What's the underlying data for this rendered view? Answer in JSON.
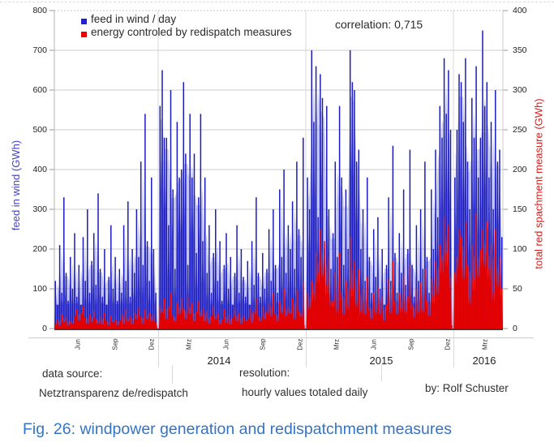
{
  "legend": {
    "items": [
      {
        "label": "feed in wind / day",
        "color": "#2222cc"
      },
      {
        "label": "energy controled by redispatch measures",
        "color": "#e60000"
      }
    ]
  },
  "annotation": {
    "correlation_label": "correlation: 0,715"
  },
  "axes": {
    "left": {
      "label": "feed in wind (GWh)",
      "color": "#4343c8",
      "ticks": [
        "800",
        "700",
        "600",
        "500",
        "400",
        "300",
        "200",
        "100",
        "0"
      ]
    },
    "right": {
      "label": "total red spachment measure (GWh)",
      "color": "#d62020",
      "ticks": [
        "400",
        "350",
        "300",
        "250",
        "200",
        "150",
        "100",
        "50",
        "0"
      ]
    },
    "x": {
      "month_labels": [
        "Jun",
        "Sep",
        "Dez",
        "Mrz",
        "Jun",
        "Sep",
        "Dez",
        "Mrz",
        "Jun",
        "Sep",
        "Dez",
        "Mrz"
      ],
      "year_labels": [
        "2014",
        "2015",
        "2016"
      ]
    }
  },
  "footer": {
    "col1_title": "data source:",
    "col1_value": "Netztransparenz de/redispatch",
    "col2_title": "resolution:",
    "col2_value": "hourly values totaled daily",
    "byline": "by: Rolf Schuster"
  },
  "caption": "Fig. 26: windpower generation and redispatchment measures",
  "chart_data": {
    "type": "line",
    "title": "",
    "x_start": "2013-04",
    "x_end": "2016-04",
    "sampling": "values sampled about every 5 days from the daily series",
    "y_left": {
      "label": "feed in wind (GWh)",
      "range": [
        0,
        800
      ]
    },
    "y_right": {
      "label": "total red spachment measure (GWh)",
      "range": [
        0,
        400
      ]
    },
    "grid": {
      "horizontal_step_left": 100,
      "year_dividers": [
        "2014-01-01",
        "2015-01-01",
        "2016-01-01"
      ]
    },
    "legend_position": "top-left",
    "series": [
      {
        "name": "feed in wind / day",
        "axis": "left",
        "color": "#2222cc",
        "values": [
          120,
          60,
          210,
          90,
          330,
          140,
          70,
          180,
          100,
          240,
          80,
          160,
          60,
          230,
          120,
          300,
          90,
          170,
          240,
          110,
          340,
          150,
          80,
          200,
          60,
          130,
          260,
          100,
          180,
          70,
          150,
          90,
          260,
          120,
          320,
          80,
          200,
          140,
          300,
          180,
          420,
          160,
          540,
          220,
          120,
          380,
          200,
          90,
          300,
          560,
          650,
          480,
          480,
          260,
          600,
          350,
          150,
          520,
          380,
          400,
          620,
          440,
          160,
          540,
          380,
          440,
          190,
          330,
          540,
          220,
          380,
          140,
          260,
          90,
          190,
          300,
          120,
          220,
          70,
          160,
          240,
          100,
          180,
          60,
          140,
          260,
          90,
          200,
          130,
          80,
          170,
          60,
          220,
          110,
          330,
          140,
          80,
          190,
          100,
          150,
          250,
          120,
          300,
          160,
          90,
          350,
          180,
          400,
          140,
          260,
          200,
          320,
          150,
          420,
          250,
          180,
          480,
          220,
          380,
          300,
          700,
          520,
          660,
          280,
          640,
          580,
          200,
          560,
          300,
          150,
          240,
          420,
          180,
          560,
          380,
          160,
          350,
          200,
          700,
          620,
          600,
          420,
          450,
          200,
          300,
          120,
          380,
          180,
          90,
          250,
          130,
          280,
          100,
          200,
          60,
          160,
          330,
          120,
          460,
          190,
          90,
          240,
          140,
          350,
          110,
          200,
          450,
          160,
          80,
          260,
          120,
          300,
          150,
          420,
          180,
          90,
          350,
          200,
          450,
          280,
          560,
          480,
          680,
          540,
          650,
          500,
          620,
          380,
          500,
          640,
          620,
          520,
          680,
          420,
          300,
          580,
          480,
          660,
          380,
          480,
          750,
          560,
          620,
          380,
          520,
          300,
          600,
          420,
          450,
          230
        ]
      },
      {
        "name": "energy controled by redispatch measures",
        "axis": "right",
        "color": "#e60000",
        "values": [
          5,
          12,
          4,
          18,
          8,
          15,
          4,
          10,
          6,
          16,
          24,
          10,
          20,
          28,
          14,
          6,
          18,
          8,
          22,
          12,
          6,
          15,
          5,
          20,
          10,
          4,
          16,
          8,
          12,
          4,
          10,
          18,
          6,
          24,
          9,
          15,
          5,
          20,
          12,
          26,
          15,
          6,
          24,
          12,
          20,
          9,
          18,
          8,
          12,
          28,
          22,
          38,
          12,
          28,
          45,
          16,
          9,
          32,
          18,
          38,
          25,
          12,
          40,
          18,
          32,
          9,
          22,
          35,
          15,
          25,
          9,
          22,
          6,
          16,
          28,
          12,
          19,
          5,
          12,
          24,
          7,
          17,
          5,
          14,
          25,
          9,
          19,
          6,
          16,
          9,
          12,
          25,
          7,
          22,
          38,
          15,
          9,
          28,
          12,
          22,
          32,
          15,
          45,
          19,
          9,
          35,
          22,
          50,
          15,
          28,
          19,
          38,
          12,
          48,
          22,
          15,
          58,
          25,
          45,
          32,
          60,
          45,
          95,
          70,
          125,
          80,
          110,
          55,
          90,
          35,
          35,
          70,
          25,
          95,
          45,
          18,
          60,
          30,
          115,
          50,
          85,
          35,
          75,
          22,
          50,
          18,
          65,
          28,
          12,
          45,
          22,
          52,
          18,
          40,
          10,
          30,
          62,
          22,
          85,
          35,
          18,
          45,
          26,
          68,
          22,
          40,
          80,
          30,
          14,
          50,
          22,
          58,
          26,
          75,
          35,
          16,
          62,
          40,
          85,
          55,
          105,
          85,
          140,
          95,
          130,
          65,
          115,
          70,
          90,
          125,
          115,
          75,
          135,
          80,
          40,
          105,
          62,
          145,
          78,
          100,
          125,
          95,
          135,
          75,
          105,
          45,
          125,
          68,
          90,
          50
        ]
      }
    ]
  }
}
